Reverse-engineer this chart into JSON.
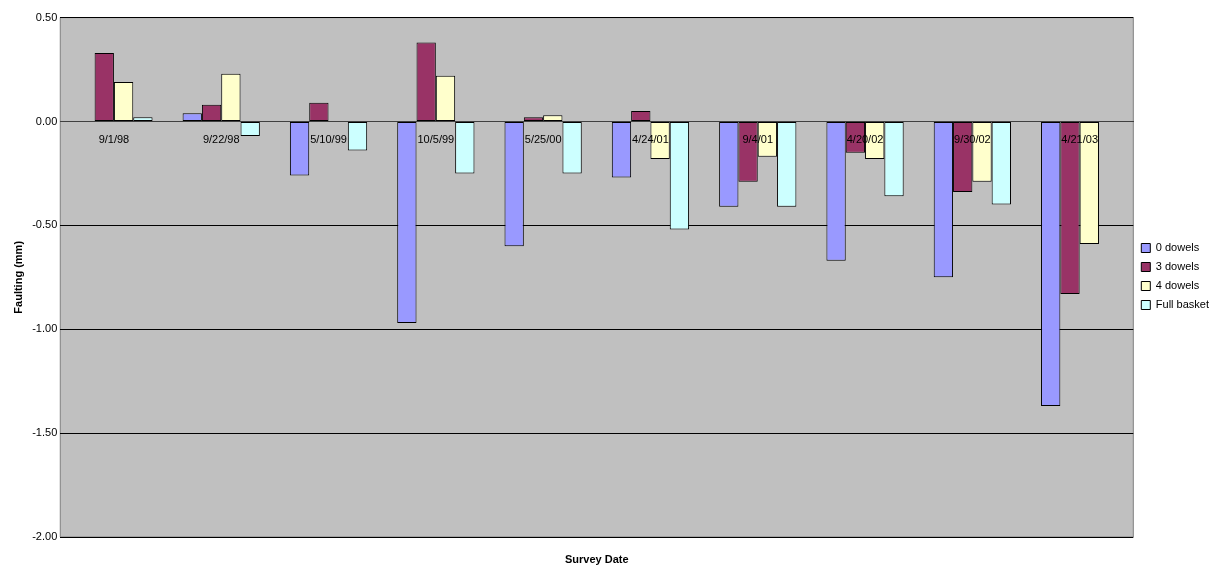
{
  "chart_data": {
    "type": "bar",
    "xlabel": "Survey Date",
    "ylabel": "Faulting (mm)",
    "categories": [
      "9/1/98",
      "9/22/98",
      "5/10/99",
      "10/5/99",
      "5/25/00",
      "4/24/01",
      "9/4/01",
      "4/20/02",
      "9/30/02",
      "4/21/03"
    ],
    "series": [
      {
        "name": "0 dowels",
        "color": "#9999ff",
        "values": [
          0.0,
          0.04,
          -0.26,
          -0.97,
          -0.6,
          -0.27,
          -0.41,
          -0.67,
          -0.75,
          -1.37
        ]
      },
      {
        "name": "3 dowels",
        "color": "#993366",
        "values": [
          0.33,
          0.08,
          0.09,
          0.38,
          0.02,
          0.05,
          -0.29,
          -0.15,
          -0.34,
          -0.83
        ]
      },
      {
        "name": "4 dowels",
        "color": "#ffffcc",
        "values": [
          0.19,
          0.23,
          0.0,
          0.22,
          0.03,
          -0.18,
          -0.17,
          -0.18,
          -0.29,
          -0.59
        ]
      },
      {
        "name": "Full basket",
        "color": "#ccffff",
        "values": [
          0.02,
          -0.07,
          -0.14,
          -0.25,
          -0.25,
          -0.52,
          -0.41,
          -0.36,
          -0.4,
          null
        ]
      }
    ],
    "ylim": [
      -2,
      0.5
    ],
    "yticks": [
      {
        "value": -2,
        "label": "-2.00"
      },
      {
        "value": -1.5,
        "label": "-1.50"
      },
      {
        "value": -1,
        "label": "-1.00"
      },
      {
        "value": -0.5,
        "label": "-0.50"
      },
      {
        "value": 0,
        "label": "0.00"
      },
      {
        "value": 0.5,
        "label": "0.50"
      }
    ],
    "grid": "y",
    "legend": "right"
  }
}
